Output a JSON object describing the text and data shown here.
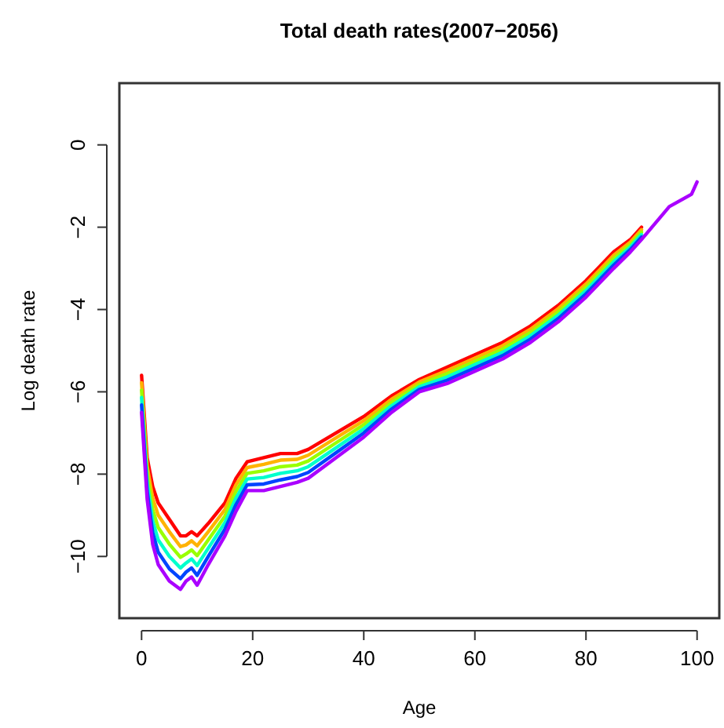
{
  "chart_data": {
    "type": "line",
    "title": "Total death rates(2007−2056)",
    "xlabel": "Age",
    "ylabel": "Log death rate",
    "x": [
      0,
      1,
      2,
      3,
      5,
      7,
      8,
      9,
      10,
      12,
      15,
      17,
      19,
      22,
      25,
      28,
      30,
      35,
      40,
      45,
      50,
      55,
      60,
      65,
      70,
      75,
      80,
      85,
      88,
      90,
      95,
      99,
      100
    ],
    "xlim": [
      -4,
      104
    ],
    "xticks": [
      0,
      20,
      40,
      60,
      80,
      100
    ],
    "ylim": [
      -11.5,
      1.5
    ],
    "yticks": [
      -10,
      -8,
      -6,
      -4,
      -2,
      0
    ],
    "grid": false,
    "marker": "none",
    "line_style": "solid",
    "series": [
      {
        "color": "#ff0000",
        "values": [
          -5.6,
          -7.6,
          -8.3,
          -8.7,
          -9.1,
          -9.5,
          -9.5,
          -9.4,
          -9.5,
          -9.2,
          -8.7,
          -8.1,
          -7.7,
          -7.6,
          -7.5,
          -7.5,
          -7.4,
          -7.0,
          -6.6,
          -6.1,
          -5.7,
          -5.4,
          -5.1,
          -4.8,
          -4.4,
          -3.9,
          -3.3,
          -2.6,
          -2.3,
          -2.0,
          null,
          null,
          null
        ]
      },
      {
        "color": "#ffb300",
        "values": [
          -5.78,
          -7.8,
          -8.58,
          -9.0,
          -9.4,
          -9.76,
          -9.72,
          -9.62,
          -9.74,
          -9.4,
          -8.86,
          -8.26,
          -7.84,
          -7.76,
          -7.66,
          -7.64,
          -7.54,
          -7.12,
          -6.7,
          -6.18,
          -5.76,
          -5.48,
          -5.18,
          -4.88,
          -4.48,
          -3.98,
          -3.38,
          -2.68,
          -2.36,
          -2.06,
          null,
          null,
          null
        ]
      },
      {
        "color": "#99ff00",
        "values": [
          -5.96,
          -8.0,
          -8.86,
          -9.3,
          -9.7,
          -10.02,
          -9.94,
          -9.84,
          -9.98,
          -9.6,
          -9.02,
          -8.42,
          -7.98,
          -7.92,
          -7.82,
          -7.78,
          -7.68,
          -7.24,
          -6.8,
          -6.26,
          -5.82,
          -5.56,
          -5.26,
          -4.96,
          -4.56,
          -4.06,
          -3.46,
          -2.76,
          -2.42,
          -2.12,
          null,
          null,
          null
        ]
      },
      {
        "color": "#00ffcc",
        "values": [
          -6.14,
          -8.2,
          -9.14,
          -9.6,
          -10.0,
          -10.28,
          -10.16,
          -10.06,
          -10.22,
          -9.8,
          -9.18,
          -8.58,
          -8.12,
          -8.08,
          -7.98,
          -7.92,
          -7.82,
          -7.36,
          -6.9,
          -6.34,
          -5.88,
          -5.64,
          -5.34,
          -5.04,
          -4.64,
          -4.14,
          -3.54,
          -2.84,
          -2.48,
          -2.18,
          null,
          null,
          null
        ]
      },
      {
        "color": "#0044ff",
        "values": [
          -6.32,
          -8.4,
          -9.42,
          -9.9,
          -10.3,
          -10.54,
          -10.38,
          -10.28,
          -10.46,
          -10.0,
          -9.34,
          -8.74,
          -8.26,
          -8.24,
          -8.14,
          -8.06,
          -7.96,
          -7.48,
          -7.0,
          -6.42,
          -5.94,
          -5.72,
          -5.42,
          -5.12,
          -4.72,
          -4.22,
          -3.62,
          -2.92,
          -2.54,
          -2.24,
          null,
          null,
          null
        ]
      },
      {
        "color": "#aa00ff",
        "values": [
          -6.5,
          -8.6,
          -9.7,
          -10.2,
          -10.6,
          -10.8,
          -10.6,
          -10.5,
          -10.7,
          -10.2,
          -9.5,
          -8.9,
          -8.4,
          -8.4,
          -8.3,
          -8.2,
          -8.1,
          -7.6,
          -7.1,
          -6.5,
          -6.0,
          -5.8,
          -5.5,
          -5.2,
          -4.8,
          -4.3,
          -3.7,
          -3.0,
          -2.6,
          -2.3,
          -1.5,
          -1.2,
          -0.9
        ]
      }
    ]
  }
}
